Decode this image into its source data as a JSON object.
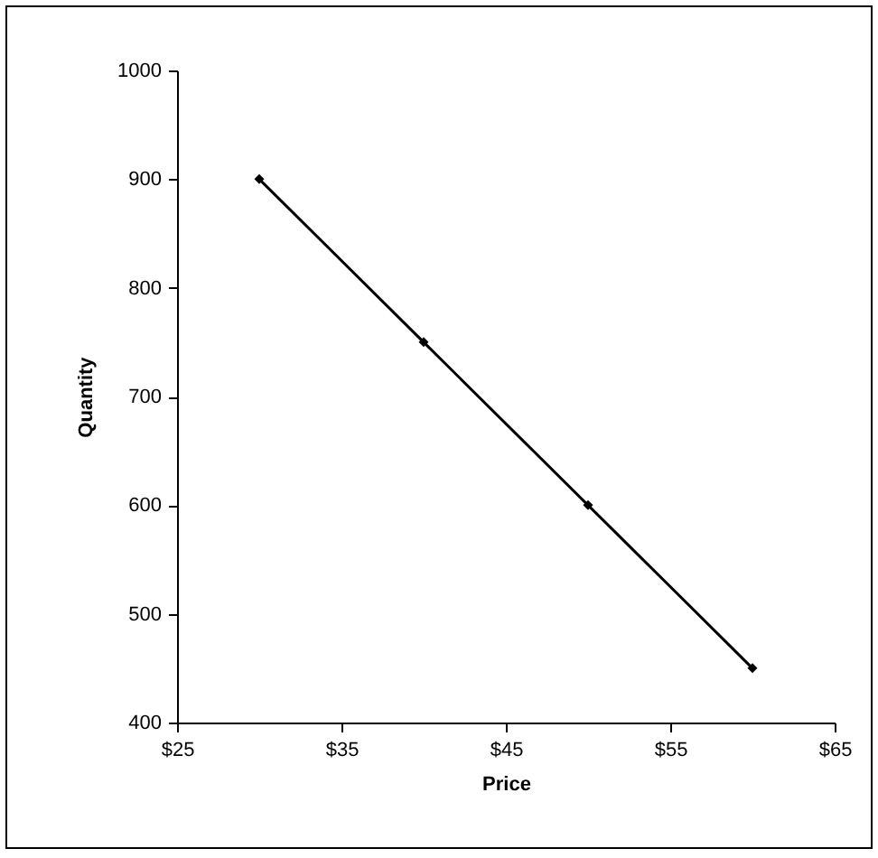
{
  "chart_data": {
    "type": "line",
    "xlabel": "Price",
    "ylabel": "Quantity",
    "x": [
      30,
      40,
      50,
      60
    ],
    "series": [
      {
        "color": "#000000",
        "values": [
          900,
          750,
          600,
          450
        ]
      }
    ],
    "xlim": [
      25,
      65
    ],
    "xticks": [
      {
        "value": 25,
        "label": "$25"
      },
      {
        "value": 35,
        "label": "$35"
      },
      {
        "value": 45,
        "label": "$45"
      },
      {
        "value": 55,
        "label": "$55"
      },
      {
        "value": 65,
        "label": "$65"
      }
    ],
    "ylim": [
      400,
      1000
    ],
    "yticks": [
      400,
      500,
      600,
      700,
      800,
      900,
      1000
    ],
    "grid": false,
    "marker": "diamond",
    "line_style": "solid"
  }
}
